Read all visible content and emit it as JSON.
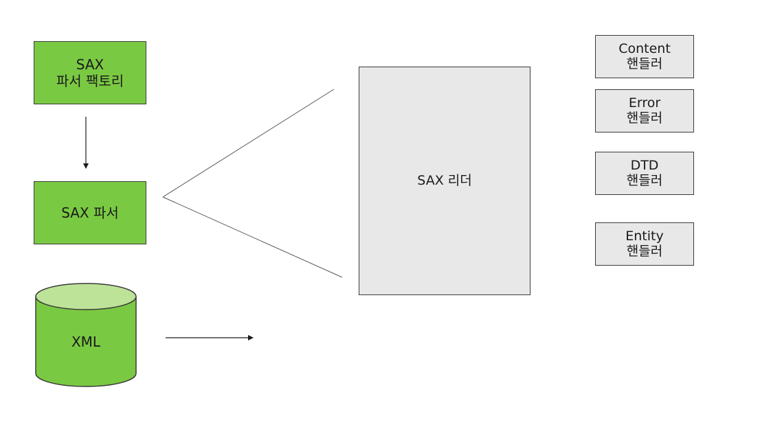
{
  "factory": {
    "line1": "SAX",
    "line2": "파서 팩토리"
  },
  "parser": {
    "label": "SAX 파서"
  },
  "xml": {
    "label": "XML"
  },
  "reader": {
    "label": "SAX 리더"
  },
  "handlers": [
    {
      "line1": "Content",
      "line2": "핸들러"
    },
    {
      "line1": "Error",
      "line2": "핸들러"
    },
    {
      "line1": "DTD",
      "line2": "핸들러"
    },
    {
      "line1": "Entity",
      "line2": "핸들러"
    }
  ],
  "colors": {
    "green": "#7ac943",
    "green_top": "#bde398",
    "box_gray": "#e8e8e8",
    "stroke": "#3a3a3a"
  }
}
